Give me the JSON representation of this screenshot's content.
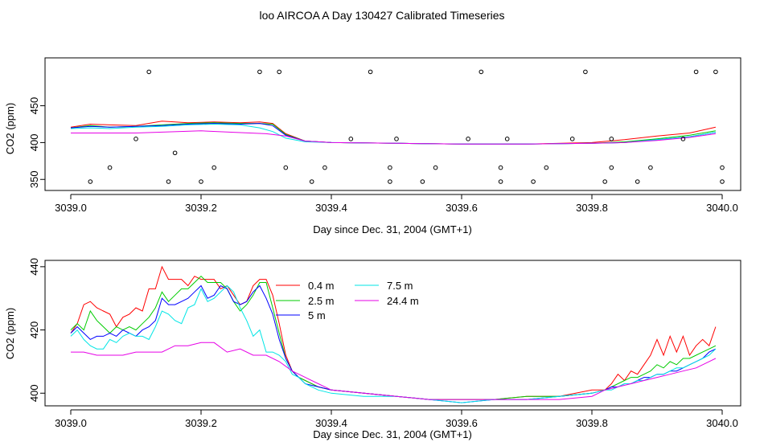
{
  "page_title": "loo AIRCOA A  Day 130427  Calibrated Timeseries",
  "colors": {
    "0.4 m": "#ff0000",
    "2.5 m": "#00cc00",
    "5 m": "#0000ff",
    "7.5 m": "#00e5e5",
    "24.4 m": "#e600e6",
    "markers": "#000000",
    "axes": "#000000"
  },
  "chart_data": [
    {
      "type": "line",
      "title": "",
      "xlabel": "Day since Dec. 31, 2004 (GMT+1)",
      "ylabel": "CO2 (ppm)",
      "xlim": [
        3039.0,
        3040.0
      ],
      "ylim": [
        335,
        515
      ],
      "x_ticks": [
        3039.0,
        3039.2,
        3039.4,
        3039.6,
        3039.8,
        3040.0
      ],
      "x_tick_labels": [
        "3039.0",
        "3039.2",
        "3039.4",
        "3039.6",
        "3039.8",
        "3040.0"
      ],
      "y_ticks": [
        350,
        400,
        450
      ],
      "y_tick_labels": [
        "350",
        "400",
        "450"
      ],
      "grid": false,
      "series": [
        {
          "name": "0.4 m",
          "x": [
            3039.0,
            3039.03,
            3039.06,
            3039.1,
            3039.14,
            3039.18,
            3039.22,
            3039.26,
            3039.29,
            3039.31,
            3039.33,
            3039.36,
            3039.4,
            3039.5,
            3039.6,
            3039.7,
            3039.8,
            3039.85,
            3039.9,
            3039.95,
            3039.99
          ],
          "y": [
            421,
            425,
            424,
            423,
            429,
            427,
            428,
            427,
            428,
            426,
            412,
            402,
            400,
            399,
            398,
            398,
            400,
            404,
            409,
            413,
            421
          ]
        },
        {
          "name": "2.5 m",
          "x": [
            3039.0,
            3039.03,
            3039.06,
            3039.1,
            3039.14,
            3039.18,
            3039.22,
            3039.26,
            3039.29,
            3039.31,
            3039.33,
            3039.36,
            3039.4,
            3039.5,
            3039.6,
            3039.7,
            3039.8,
            3039.85,
            3039.9,
            3039.95,
            3039.99
          ],
          "y": [
            420,
            423,
            421,
            422,
            424,
            426,
            427,
            426,
            426,
            425,
            411,
            402,
            400,
            399,
            398,
            398,
            399,
            401,
            405,
            410,
            416
          ]
        },
        {
          "name": "5 m",
          "x": [
            3039.0,
            3039.03,
            3039.06,
            3039.1,
            3039.14,
            3039.18,
            3039.22,
            3039.26,
            3039.29,
            3039.31,
            3039.33,
            3039.36,
            3039.4,
            3039.5,
            3039.6,
            3039.7,
            3039.8,
            3039.85,
            3039.9,
            3039.95,
            3039.99
          ],
          "y": [
            420,
            422,
            421,
            422,
            423,
            425,
            426,
            425,
            426,
            423,
            410,
            402,
            400,
            399,
            398,
            398,
            399,
            400,
            404,
            408,
            414
          ]
        },
        {
          "name": "7.5 m",
          "x": [
            3039.0,
            3039.03,
            3039.06,
            3039.1,
            3039.14,
            3039.18,
            3039.22,
            3039.26,
            3039.29,
            3039.31,
            3039.33,
            3039.36,
            3039.4,
            3039.5,
            3039.6,
            3039.7,
            3039.8,
            3039.85,
            3039.9,
            3039.95,
            3039.99
          ],
          "y": [
            419,
            420,
            419,
            421,
            422,
            424,
            425,
            424,
            420,
            415,
            406,
            401,
            400,
            399,
            398,
            398,
            399,
            400,
            404,
            408,
            414
          ]
        },
        {
          "name": "24.4 m",
          "x": [
            3039.0,
            3039.1,
            3039.2,
            3039.25,
            3039.3,
            3039.33,
            3039.36,
            3039.4,
            3039.5,
            3039.6,
            3039.7,
            3039.8,
            3039.85,
            3039.9,
            3039.95,
            3039.99
          ],
          "y": [
            413,
            413,
            416,
            414,
            412,
            409,
            402,
            400,
            399,
            398,
            398,
            399,
            400,
            403,
            407,
            412
          ]
        }
      ],
      "markers": {
        "x": [
          3039.03,
          3039.06,
          3039.1,
          3039.12,
          3039.15,
          3039.16,
          3039.2,
          3039.22,
          3039.29,
          3039.32,
          3039.33,
          3039.37,
          3039.39,
          3039.43,
          3039.46,
          3039.49,
          3039.49,
          3039.5,
          3039.54,
          3039.56,
          3039.61,
          3039.63,
          3039.66,
          3039.66,
          3039.67,
          3039.71,
          3039.73,
          3039.77,
          3039.79,
          3039.82,
          3039.83,
          3039.83,
          3039.87,
          3039.89,
          3039.94,
          3039.96,
          3039.99,
          3040.0,
          3040.0
        ],
        "y": [
          347,
          366,
          405,
          496,
          347,
          386,
          347,
          366,
          496,
          496,
          366,
          347,
          366,
          405,
          496,
          366,
          347,
          405,
          347,
          366,
          405,
          496,
          366,
          347,
          405,
          347,
          366,
          405,
          496,
          347,
          366,
          405,
          347,
          366,
          405,
          496,
          496,
          366,
          347
        ]
      }
    },
    {
      "type": "line",
      "title": "",
      "xlabel": "Day since Dec. 31, 2004 (GMT+1)",
      "ylabel": "CO2 (ppm)",
      "xlim": [
        3039.0,
        3040.0
      ],
      "ylim": [
        396,
        442
      ],
      "x_ticks": [
        3039.0,
        3039.2,
        3039.4,
        3039.6,
        3039.8,
        3040.0
      ],
      "x_tick_labels": [
        "3039.0",
        "3039.2",
        "3039.4",
        "3039.6",
        "3039.8",
        "3040.0"
      ],
      "y_ticks": [
        400,
        420,
        440
      ],
      "y_tick_labels": [
        "400",
        "420",
        "440"
      ],
      "grid": false,
      "legend": {
        "placement": "top-center",
        "columns": 2,
        "entries": [
          "0.4 m",
          "2.5 m",
          "5 m",
          "7.5 m",
          "24.4 m"
        ]
      },
      "series": [
        {
          "name": "0.4 m",
          "x": [
            3039.0,
            3039.01,
            3039.02,
            3039.03,
            3039.04,
            3039.05,
            3039.06,
            3039.07,
            3039.08,
            3039.09,
            3039.1,
            3039.11,
            3039.12,
            3039.13,
            3039.14,
            3039.15,
            3039.16,
            3039.17,
            3039.18,
            3039.19,
            3039.2,
            3039.21,
            3039.22,
            3039.23,
            3039.24,
            3039.25,
            3039.26,
            3039.27,
            3039.28,
            3039.29,
            3039.3,
            3039.31,
            3039.32,
            3039.33,
            3039.34,
            3039.35,
            3039.36,
            3039.38,
            3039.4,
            3039.45,
            3039.5,
            3039.55,
            3039.6,
            3039.65,
            3039.7,
            3039.75,
            3039.8,
            3039.82,
            3039.83,
            3039.84,
            3039.85,
            3039.86,
            3039.87,
            3039.88,
            3039.89,
            3039.9,
            3039.91,
            3039.92,
            3039.93,
            3039.94,
            3039.95,
            3039.96,
            3039.97,
            3039.98,
            3039.99
          ],
          "y": [
            419,
            422,
            428,
            429,
            427,
            426,
            425,
            421,
            424,
            425,
            427,
            426,
            433,
            433,
            440,
            436,
            436,
            436,
            434,
            437,
            436,
            436,
            436,
            433,
            434,
            431,
            428,
            429,
            434,
            436,
            436,
            431,
            422,
            412,
            407,
            405,
            404,
            402,
            401,
            400,
            399,
            398,
            398,
            398,
            399,
            399,
            401,
            401,
            403,
            406,
            404,
            407,
            406,
            409,
            412,
            417,
            412,
            418,
            413,
            418,
            412,
            415,
            417,
            415,
            421
          ]
        },
        {
          "name": "2.5 m",
          "x": [
            3039.0,
            3039.01,
            3039.02,
            3039.03,
            3039.04,
            3039.05,
            3039.06,
            3039.07,
            3039.08,
            3039.09,
            3039.1,
            3039.11,
            3039.12,
            3039.13,
            3039.14,
            3039.15,
            3039.16,
            3039.17,
            3039.18,
            3039.19,
            3039.2,
            3039.21,
            3039.22,
            3039.23,
            3039.24,
            3039.25,
            3039.26,
            3039.27,
            3039.28,
            3039.29,
            3039.3,
            3039.31,
            3039.32,
            3039.33,
            3039.34,
            3039.35,
            3039.36,
            3039.38,
            3039.4,
            3039.45,
            3039.5,
            3039.55,
            3039.6,
            3039.65,
            3039.7,
            3039.75,
            3039.8,
            3039.82,
            3039.83,
            3039.84,
            3039.85,
            3039.86,
            3039.87,
            3039.88,
            3039.89,
            3039.9,
            3039.91,
            3039.92,
            3039.93,
            3039.94,
            3039.95,
            3039.96,
            3039.97,
            3039.98,
            3039.99
          ],
          "y": [
            420,
            422,
            420,
            426,
            423,
            421,
            419,
            421,
            420,
            421,
            420,
            422,
            424,
            427,
            432,
            429,
            431,
            433,
            433,
            435,
            437,
            435,
            435,
            435,
            433,
            429,
            426,
            428,
            431,
            435,
            435,
            427,
            419,
            411,
            407,
            405,
            404,
            402,
            401,
            400,
            399,
            398,
            398,
            398,
            399,
            399,
            400,
            401,
            402,
            403,
            404,
            405,
            405,
            406,
            407,
            409,
            408,
            410,
            409,
            411,
            411,
            412,
            413,
            414,
            415
          ]
        },
        {
          "name": "5 m",
          "x": [
            3039.0,
            3039.01,
            3039.02,
            3039.03,
            3039.04,
            3039.05,
            3039.06,
            3039.07,
            3039.08,
            3039.09,
            3039.1,
            3039.11,
            3039.12,
            3039.13,
            3039.14,
            3039.15,
            3039.16,
            3039.17,
            3039.18,
            3039.19,
            3039.2,
            3039.21,
            3039.22,
            3039.23,
            3039.24,
            3039.25,
            3039.26,
            3039.27,
            3039.28,
            3039.29,
            3039.3,
            3039.31,
            3039.32,
            3039.33,
            3039.34,
            3039.35,
            3039.36,
            3039.38,
            3039.4,
            3039.45,
            3039.5,
            3039.55,
            3039.6,
            3039.65,
            3039.7,
            3039.75,
            3039.8,
            3039.82,
            3039.83,
            3039.84,
            3039.85,
            3039.86,
            3039.87,
            3039.88,
            3039.89,
            3039.9,
            3039.91,
            3039.92,
            3039.93,
            3039.94,
            3039.95,
            3039.96,
            3039.97,
            3039.98,
            3039.99
          ],
          "y": [
            419,
            421,
            419,
            417,
            418,
            418,
            419,
            418,
            420,
            419,
            418,
            420,
            421,
            423,
            430,
            428,
            428,
            429,
            430,
            432,
            434,
            430,
            431,
            434,
            433,
            429,
            428,
            429,
            432,
            434,
            430,
            425,
            417,
            411,
            407,
            405,
            403,
            402,
            401,
            400,
            399,
            398,
            397,
            398,
            398,
            399,
            400,
            401,
            402,
            402,
            403,
            403,
            404,
            405,
            405,
            406,
            406,
            407,
            407,
            408,
            409,
            410,
            411,
            413,
            414
          ]
        },
        {
          "name": "7.5 m",
          "x": [
            3039.0,
            3039.01,
            3039.02,
            3039.03,
            3039.04,
            3039.05,
            3039.06,
            3039.07,
            3039.08,
            3039.09,
            3039.1,
            3039.11,
            3039.12,
            3039.13,
            3039.14,
            3039.15,
            3039.16,
            3039.17,
            3039.18,
            3039.19,
            3039.2,
            3039.21,
            3039.22,
            3039.23,
            3039.24,
            3039.25,
            3039.26,
            3039.27,
            3039.28,
            3039.29,
            3039.3,
            3039.31,
            3039.32,
            3039.33,
            3039.34,
            3039.35,
            3039.36,
            3039.38,
            3039.4,
            3039.45,
            3039.5,
            3039.55,
            3039.6,
            3039.65,
            3039.7,
            3039.75,
            3039.8,
            3039.82,
            3039.83,
            3039.84,
            3039.85,
            3039.86,
            3039.87,
            3039.88,
            3039.89,
            3039.9,
            3039.91,
            3039.92,
            3039.93,
            3039.94,
            3039.95,
            3039.96,
            3039.97,
            3039.98,
            3039.99
          ],
          "y": [
            418,
            420,
            417,
            415,
            414,
            414,
            417,
            416,
            418,
            419,
            418,
            418,
            417,
            421,
            426,
            425,
            423,
            422,
            427,
            428,
            433,
            429,
            430,
            432,
            434,
            432,
            427,
            423,
            418,
            420,
            413,
            413,
            412,
            410,
            406,
            405,
            403,
            401,
            400,
            399,
            399,
            398,
            397,
            398,
            398,
            399,
            400,
            401,
            401,
            402,
            403,
            403,
            404,
            404,
            405,
            406,
            406,
            407,
            408,
            408,
            409,
            410,
            411,
            412,
            414
          ]
        },
        {
          "name": "24.4 m",
          "x": [
            3039.0,
            3039.02,
            3039.04,
            3039.06,
            3039.08,
            3039.1,
            3039.12,
            3039.14,
            3039.16,
            3039.18,
            3039.2,
            3039.22,
            3039.24,
            3039.26,
            3039.28,
            3039.3,
            3039.32,
            3039.34,
            3039.36,
            3039.38,
            3039.4,
            3039.45,
            3039.5,
            3039.55,
            3039.6,
            3039.65,
            3039.7,
            3039.75,
            3039.8,
            3039.82,
            3039.84,
            3039.86,
            3039.88,
            3039.9,
            3039.92,
            3039.94,
            3039.96,
            3039.98,
            3039.99
          ],
          "y": [
            413,
            413,
            412,
            412,
            412,
            413,
            413,
            413,
            415,
            415,
            416,
            416,
            413,
            414,
            412,
            412,
            410,
            407,
            405,
            403,
            401,
            400,
            399,
            398,
            398,
            398,
            398,
            398,
            399,
            401,
            402,
            403,
            404,
            405,
            406,
            407,
            408,
            410,
            411
          ]
        }
      ]
    }
  ]
}
